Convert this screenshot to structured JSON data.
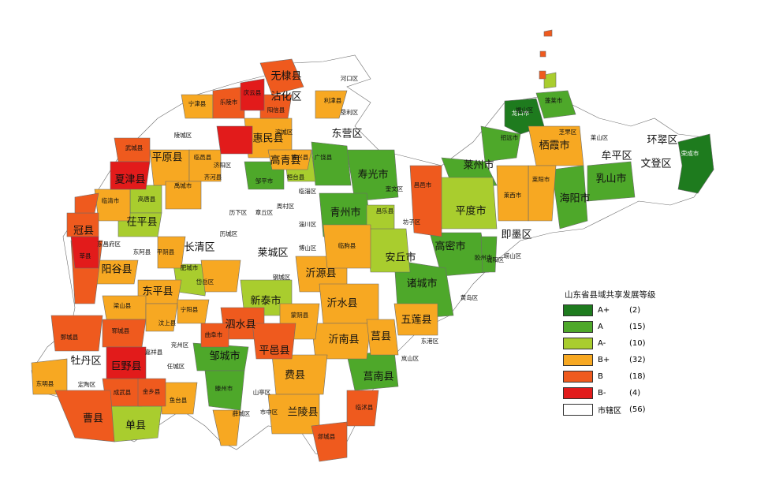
{
  "legend": {
    "title": "山东省县域共享发展等级",
    "items": [
      {
        "grade": "A+",
        "count": "(2)",
        "color": "#1e7b1e"
      },
      {
        "grade": "A",
        "count": "(15)",
        "color": "#4ea82a"
      },
      {
        "grade": "A-",
        "count": "(10)",
        "color": "#a9cd2e"
      },
      {
        "grade": "B+",
        "count": "(32)",
        "color": "#f7a822"
      },
      {
        "grade": "B",
        "count": "(18)",
        "color": "#ef5a1e"
      },
      {
        "grade": "B-",
        "count": "(4)",
        "color": "#e21b1b"
      },
      {
        "grade": "市辖区",
        "count": "(56)",
        "color": "#ffffff"
      }
    ]
  },
  "map_labels": {
    "wudi": "无棣县",
    "zhanhua": "沾化区",
    "hekou": "河口区",
    "kenli": "垦利区",
    "dongying": "东营区",
    "lijin": "利津县",
    "ningjin": "宁津县",
    "laoling": "乐陵市",
    "qingyun": "庆云县",
    "yangxin": "阳信县",
    "binzhou": "滨城区",
    "huimin": "惠民县",
    "lingcheng": "陵城区",
    "wucheng": "武城县",
    "pingyuan": "平原县",
    "linyi_dz": "临邑县",
    "xiajin": "夏津县",
    "gaoqing": "高青县",
    "boxing": "博兴县",
    "guangrao": "广饶县",
    "shouguang": "寿光市",
    "zouping": "邹平市",
    "huantai": "桓台县",
    "yucheng": "禹城市",
    "qihe": "齐河县",
    "jiyang": "济阳区",
    "gaotang": "高唐县",
    "linqing": "临清市",
    "chiping": "茌平县",
    "guanxian": "冠县",
    "xinxian": "莘县",
    "zhangqiu": "章丘区",
    "linzi": "临淄区",
    "zichuan": "淄川区",
    "licheng": "历城区",
    "changqing": "长清区",
    "laicheng": "莱城区",
    "boshan": "博山区",
    "qingzhou": "青州市",
    "changle": "昌乐县",
    "fangzi": "坊子区",
    "anqiu": "安丘市",
    "linqu": "临朐县",
    "yiyuan": "沂源县",
    "pingyin": "平阴县",
    "dong_e": "东阿县",
    "yanggu": "阳谷县",
    "feicheng": "肥城市",
    "dongping": "东平县",
    "daiyue": "岱岳区",
    "xintai": "新泰市",
    "gangcheng": "钢城区",
    "mengyin": "蒙阴县",
    "yishui": "沂水县",
    "juxian": "莒县",
    "wulian": "五莲县",
    "zhucheng": "诸城市",
    "gaomi": "高密市",
    "jiaozhou": "胶州市",
    "changyi": "昌邑市",
    "pingdu": "平度市",
    "laizhou": "莱州市",
    "zhaoyuan": "招远市",
    "longkou": "龙口市",
    "penglai": "蓬莱市",
    "qixia": "栖霞市",
    "laiyang": "莱阳市",
    "laixi": "莱西市",
    "haiyang": "海阳市",
    "rushan": "乳山市",
    "muping": "牟平区",
    "wendeng": "文登区",
    "huancui": "环翠区",
    "rongcheng": "荣成市",
    "jimo": "即墨区",
    "chengyang": "城阳区",
    "huangdao": "黄岛区",
    "donggang": "东港区",
    "lanshan": "岚山区",
    "junan": "莒南县",
    "linshu": "临沭县",
    "tancheng": "郯城县",
    "lanling": "兰陵县",
    "feixian": "费县",
    "yinan": "沂南县",
    "pingyi": "平邑县",
    "sishui": "泗水县",
    "qufu": "曲阜市",
    "zoucheng": "邹城市",
    "tengzhou": "滕州市",
    "shanting": "山亭区",
    "xuecheng": "薛城区",
    "shizhong": "市中区",
    "yutai": "鱼台县",
    "jinxiang": "金乡县",
    "chengwu": "成武县",
    "juye": "巨野县",
    "yuncheng": "郓城县",
    "liangshan": "梁山县",
    "wenshang": "汶上县",
    "ningyang": "宁阳县",
    "jiaxiang": "嘉祥县",
    "yanzhou": "兖州区",
    "juancheng": "鄄城县",
    "mudan": "牡丹区",
    "dingtao": "定陶区",
    "dongming": "东明县",
    "caoxian": "曹县",
    "shanxian": "单县",
    "dongchangfu": "东昌府区",
    "rencheng": "任城区",
    "liaocheng_dongchang": "东昌府区",
    "zhifu": "芝罘区",
    "fushan": "福山区",
    "laishan": "莱山区",
    "lixia": "历下区",
    "zhoucun": "周村区",
    "kuiwen": "奎文区",
    "laoshan": "崂山区"
  }
}
